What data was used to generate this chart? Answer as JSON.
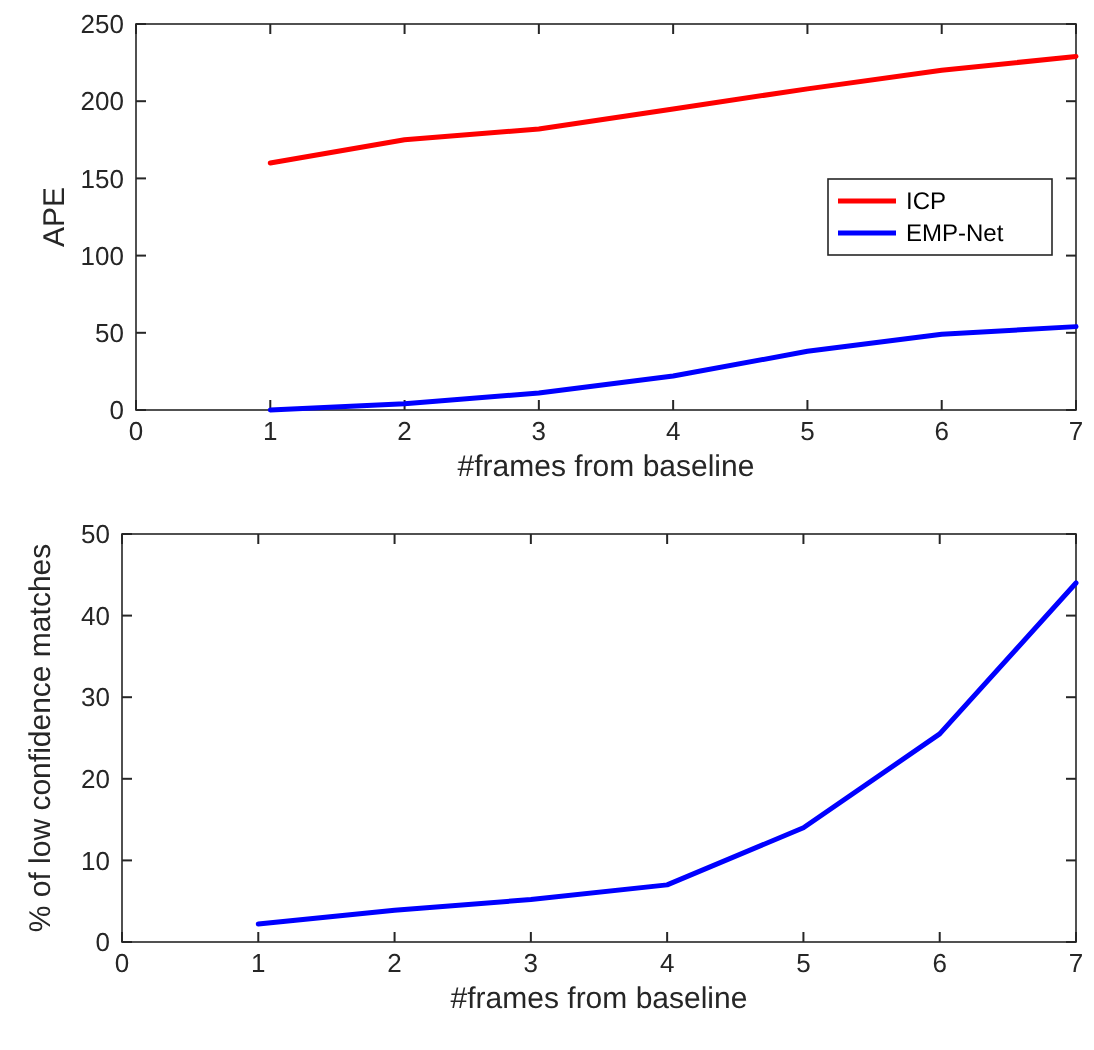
{
  "chart_data": [
    {
      "type": "line",
      "xlabel": "#frames from baseline",
      "ylabel": "APE",
      "x": [
        1,
        2,
        3,
        4,
        5,
        6,
        7
      ],
      "xlim": [
        0,
        7
      ],
      "xticks": [
        0,
        1,
        2,
        3,
        4,
        5,
        6,
        7
      ],
      "ylim": [
        0,
        250
      ],
      "yticks": [
        0,
        50,
        100,
        150,
        200,
        250
      ],
      "legend": "right",
      "series": [
        {
          "name": "ICP",
          "color": "#ff0000",
          "values": [
            160,
            175,
            182,
            195,
            208,
            220,
            229
          ]
        },
        {
          "name": "EMP-Net",
          "color": "#0000ff",
          "values": [
            0,
            4,
            11,
            22,
            38,
            49,
            54
          ]
        }
      ]
    },
    {
      "type": "line",
      "xlabel": "#frames from baseline",
      "ylabel": "% of low confidence matches",
      "x": [
        1,
        2,
        3,
        4,
        5,
        6,
        7
      ],
      "xlim": [
        0,
        7
      ],
      "xticks": [
        0,
        1,
        2,
        3,
        4,
        5,
        6,
        7
      ],
      "ylim": [
        0,
        50
      ],
      "yticks": [
        0,
        10,
        20,
        30,
        40,
        50
      ],
      "series": [
        {
          "color": "#0000ff",
          "values": [
            2.2,
            3.9,
            5.2,
            7.0,
            14,
            25.5,
            44
          ]
        }
      ]
    }
  ]
}
